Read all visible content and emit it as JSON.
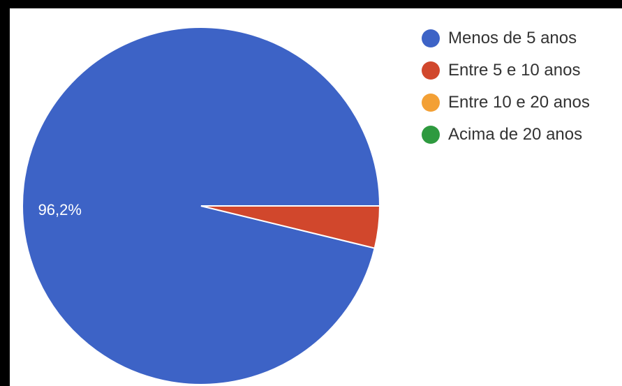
{
  "chart_data": {
    "type": "pie",
    "title": "",
    "categories": [
      "Menos de 5 anos",
      "Entre 5 e 10 anos",
      "Entre 10 e 20 anos",
      "Acima de 20 anos"
    ],
    "values": [
      96.2,
      3.8,
      0,
      0
    ],
    "colors": [
      "#3d63c6",
      "#d1472c",
      "#f3a035",
      "#2e9a3f"
    ],
    "data_labels": [
      "96,2%",
      "",
      "",
      ""
    ],
    "legend_placement": "right"
  }
}
